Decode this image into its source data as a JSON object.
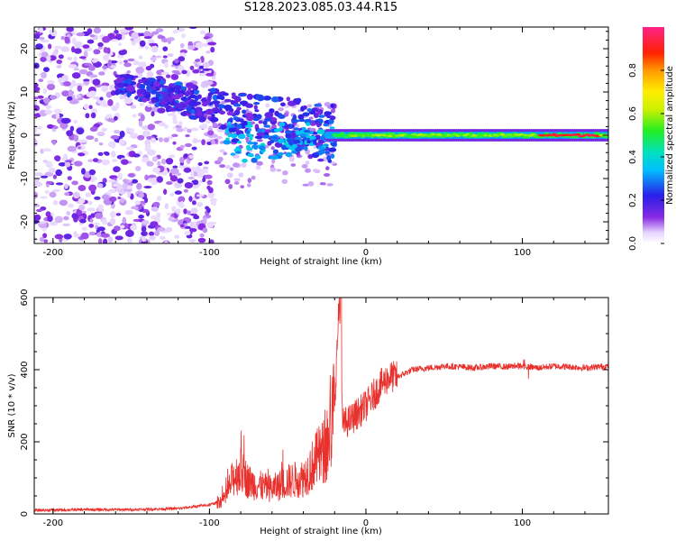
{
  "figure": {
    "title": "S128.2023.085.03.44.R15"
  },
  "chart_data": [
    {
      "type": "heatmap",
      "title": "S128.2023.085.03.44.R15",
      "xlabel": "Height of straight line (km)",
      "ylabel": "Frequency (Hz)",
      "xlim": [
        -212,
        155
      ],
      "ylim": [
        -25,
        25
      ],
      "xticks": [
        -200,
        -100,
        0,
        100
      ],
      "yticks": [
        -20,
        -10,
        0,
        10,
        20
      ],
      "colorbar": {
        "label": "Normalized spectral amplitude",
        "range": [
          0,
          1
        ],
        "ticks": [
          0.0,
          0.2,
          0.4,
          0.6,
          0.8
        ],
        "colormap": "rainbow (purple-blue-cyan-green-yellow-red-pink)"
      },
      "description_regions": [
        {
          "x_range": [
            -212,
            -100
          ],
          "freq_spread": [
            -25,
            25
          ],
          "amplitude": "low, scattered"
        },
        {
          "x_range": [
            -160,
            -20
          ],
          "freq_center_trend": [
            12,
            0
          ],
          "amplitude": "medium"
        },
        {
          "x_range": [
            -20,
            155
          ],
          "freq_center": 0,
          "amplitude": "high, narrow line"
        }
      ]
    },
    {
      "type": "line",
      "xlabel": "Height of straight line (km)",
      "ylabel": "SNR (10 * v/v)",
      "xlim": [
        -212,
        155
      ],
      "ylim": [
        0,
        600
      ],
      "xticks": [
        -200,
        -100,
        0,
        100
      ],
      "yticks": [
        0,
        200,
        400,
        600
      ],
      "series": [
        {
          "color": "#e8302c",
          "x": [
            -212,
            -180,
            -150,
            -120,
            -100,
            -90,
            -85,
            -80,
            -75,
            -70,
            -60,
            -50,
            -40,
            -35,
            -30,
            -25,
            -20,
            -17,
            -15,
            -10,
            -5,
            0,
            5,
            10,
            15,
            20,
            25,
            30,
            40,
            50,
            60,
            70,
            80,
            90,
            100,
            110,
            120,
            130,
            140,
            155
          ],
          "values": [
            10,
            12,
            12,
            15,
            25,
            40,
            100,
            120,
            90,
            80,
            70,
            90,
            100,
            130,
            160,
            180,
            300,
            600,
            250,
            260,
            280,
            300,
            330,
            360,
            380,
            380,
            390,
            400,
            405,
            410,
            408,
            405,
            410,
            408,
            410,
            405,
            410,
            408,
            405,
            410
          ]
        }
      ]
    }
  ]
}
